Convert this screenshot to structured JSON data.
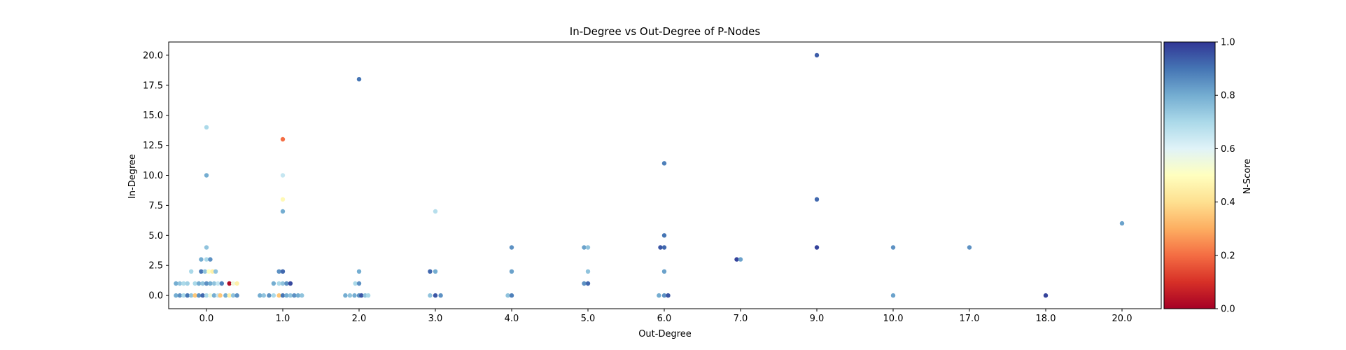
{
  "chart_data": {
    "type": "scatter",
    "title": "In-Degree vs Out-Degree of P-Nodes",
    "xlabel": "Out-Degree",
    "ylabel": "In-Degree",
    "x_categories": [
      "0.0",
      "1.0",
      "2.0",
      "3.0",
      "4.0",
      "5.0",
      "6.0",
      "7.0",
      "9.0",
      "10.0",
      "17.0",
      "18.0",
      "20.0"
    ],
    "y_ticks": [
      0.0,
      2.5,
      5.0,
      7.5,
      10.0,
      12.5,
      15.0,
      17.5,
      20.0
    ],
    "y_tick_labels": [
      "0.0",
      "2.5",
      "5.0",
      "7.5",
      "10.0",
      "12.5",
      "15.0",
      "17.5",
      "20.0"
    ],
    "ylim": [
      -1.1,
      21.1
    ],
    "grid": false,
    "colorbar": {
      "label": "N-Score",
      "range": [
        0.0,
        1.0
      ],
      "ticks": [
        "0.0",
        "0.2",
        "0.4",
        "0.6",
        "0.8",
        "1.0"
      ],
      "colormap": "RdYlBu"
    },
    "points": [
      {
        "x": "0.0",
        "offset": -0.4,
        "y": 0,
        "c": 0.8
      },
      {
        "x": "0.0",
        "offset": -0.35,
        "y": 0,
        "c": 0.85
      },
      {
        "x": "0.0",
        "offset": -0.3,
        "y": 0,
        "c": 0.7
      },
      {
        "x": "0.0",
        "offset": -0.25,
        "y": 0,
        "c": 0.9
      },
      {
        "x": "0.0",
        "offset": -0.2,
        "y": 0,
        "c": 0.75
      },
      {
        "x": "0.0",
        "offset": -0.15,
        "y": 0,
        "c": 0.35
      },
      {
        "x": "0.0",
        "offset": -0.1,
        "y": 0,
        "c": 0.85
      },
      {
        "x": "0.0",
        "offset": -0.05,
        "y": 0,
        "c": 0.92
      },
      {
        "x": "0.0",
        "offset": 0.0,
        "y": 0,
        "c": 0.7
      },
      {
        "x": "0.0",
        "offset": 0.05,
        "y": 0,
        "c": 0.55
      },
      {
        "x": "0.0",
        "offset": 0.1,
        "y": 0,
        "c": 0.8
      },
      {
        "x": "0.0",
        "offset": 0.15,
        "y": 0,
        "c": 0.65
      },
      {
        "x": "0.0",
        "offset": 0.18,
        "y": 0,
        "c": 0.35
      },
      {
        "x": "0.0",
        "offset": 0.25,
        "y": 0,
        "c": 0.8
      },
      {
        "x": "0.0",
        "offset": 0.3,
        "y": 0,
        "c": 0.45
      },
      {
        "x": "0.0",
        "offset": 0.35,
        "y": 0,
        "c": 0.75
      },
      {
        "x": "0.0",
        "offset": 0.4,
        "y": 0,
        "c": 0.85
      },
      {
        "x": "0.0",
        "offset": -0.4,
        "y": 1,
        "c": 0.8
      },
      {
        "x": "0.0",
        "offset": -0.35,
        "y": 1,
        "c": 0.75
      },
      {
        "x": "0.0",
        "offset": -0.3,
        "y": 1,
        "c": 0.7
      },
      {
        "x": "0.0",
        "offset": -0.25,
        "y": 1,
        "c": 0.72
      },
      {
        "x": "0.0",
        "offset": -0.15,
        "y": 1,
        "c": 0.7
      },
      {
        "x": "0.0",
        "offset": -0.1,
        "y": 1,
        "c": 0.8
      },
      {
        "x": "0.0",
        "offset": -0.05,
        "y": 1,
        "c": 0.75
      },
      {
        "x": "0.0",
        "offset": 0.0,
        "y": 1,
        "c": 0.85
      },
      {
        "x": "0.0",
        "offset": 0.05,
        "y": 1,
        "c": 0.8
      },
      {
        "x": "0.0",
        "offset": 0.1,
        "y": 1,
        "c": 0.75
      },
      {
        "x": "0.0",
        "offset": 0.15,
        "y": 1,
        "c": 0.65
      },
      {
        "x": "0.0",
        "offset": 0.2,
        "y": 1,
        "c": 0.88
      },
      {
        "x": "0.0",
        "offset": 0.3,
        "y": 1,
        "c": 0.02
      },
      {
        "x": "0.0",
        "offset": 0.35,
        "y": 1,
        "c": 0.55
      },
      {
        "x": "0.0",
        "offset": 0.4,
        "y": 1,
        "c": 0.45
      },
      {
        "x": "0.0",
        "offset": -0.2,
        "y": 2,
        "c": 0.7
      },
      {
        "x": "0.0",
        "offset": -0.07,
        "y": 2,
        "c": 0.9
      },
      {
        "x": "0.0",
        "offset": -0.02,
        "y": 2,
        "c": 0.75
      },
      {
        "x": "0.0",
        "offset": 0.03,
        "y": 2,
        "c": 0.5
      },
      {
        "x": "0.0",
        "offset": 0.08,
        "y": 2,
        "c": 0.45
      },
      {
        "x": "0.0",
        "offset": 0.12,
        "y": 2,
        "c": 0.75
      },
      {
        "x": "0.0",
        "offset": -0.07,
        "y": 3,
        "c": 0.8
      },
      {
        "x": "0.0",
        "offset": 0.0,
        "y": 3,
        "c": 0.7
      },
      {
        "x": "0.0",
        "offset": 0.05,
        "y": 3,
        "c": 0.85
      },
      {
        "x": "0.0",
        "offset": 0.0,
        "y": 4,
        "c": 0.75
      },
      {
        "x": "0.0",
        "offset": 0.0,
        "y": 10,
        "c": 0.8
      },
      {
        "x": "0.0",
        "offset": 0.0,
        "y": 14,
        "c": 0.7
      },
      {
        "x": "1.0",
        "offset": -0.3,
        "y": 0,
        "c": 0.8
      },
      {
        "x": "1.0",
        "offset": -0.25,
        "y": 0,
        "c": 0.75
      },
      {
        "x": "1.0",
        "offset": -0.18,
        "y": 0,
        "c": 0.85
      },
      {
        "x": "1.0",
        "offset": -0.12,
        "y": 0,
        "c": 0.7
      },
      {
        "x": "1.0",
        "offset": -0.05,
        "y": 0,
        "c": 0.35
      },
      {
        "x": "1.0",
        "offset": 0.0,
        "y": 0,
        "c": 0.9
      },
      {
        "x": "1.0",
        "offset": 0.05,
        "y": 0,
        "c": 0.8
      },
      {
        "x": "1.0",
        "offset": 0.1,
        "y": 0,
        "c": 0.75
      },
      {
        "x": "1.0",
        "offset": 0.15,
        "y": 0,
        "c": 0.85
      },
      {
        "x": "1.0",
        "offset": 0.2,
        "y": 0,
        "c": 0.8
      },
      {
        "x": "1.0",
        "offset": 0.25,
        "y": 0,
        "c": 0.75
      },
      {
        "x": "1.0",
        "offset": -0.12,
        "y": 1,
        "c": 0.8
      },
      {
        "x": "1.0",
        "offset": -0.05,
        "y": 1,
        "c": 0.7
      },
      {
        "x": "1.0",
        "offset": 0.0,
        "y": 1,
        "c": 0.75
      },
      {
        "x": "1.0",
        "offset": 0.05,
        "y": 1,
        "c": 0.85
      },
      {
        "x": "1.0",
        "offset": 0.1,
        "y": 1,
        "c": 0.97
      },
      {
        "x": "1.0",
        "offset": -0.05,
        "y": 2,
        "c": 0.85
      },
      {
        "x": "1.0",
        "offset": 0.0,
        "y": 2,
        "c": 0.92
      },
      {
        "x": "1.0",
        "offset": 0.0,
        "y": 7,
        "c": 0.8
      },
      {
        "x": "1.0",
        "offset": 0.0,
        "y": 8,
        "c": 0.48
      },
      {
        "x": "1.0",
        "offset": 0.0,
        "y": 10,
        "c": 0.65
      },
      {
        "x": "1.0",
        "offset": 0.0,
        "y": 13,
        "c": 0.2
      },
      {
        "x": "2.0",
        "offset": -0.18,
        "y": 0,
        "c": 0.8
      },
      {
        "x": "2.0",
        "offset": -0.12,
        "y": 0,
        "c": 0.75
      },
      {
        "x": "2.0",
        "offset": -0.06,
        "y": 0,
        "c": 0.8
      },
      {
        "x": "2.0",
        "offset": 0.0,
        "y": 0,
        "c": 0.85
      },
      {
        "x": "2.0",
        "offset": 0.03,
        "y": 0,
        "c": 0.95
      },
      {
        "x": "2.0",
        "offset": 0.08,
        "y": 0,
        "c": 0.75
      },
      {
        "x": "2.0",
        "offset": 0.12,
        "y": 0,
        "c": 0.7
      },
      {
        "x": "2.0",
        "offset": -0.05,
        "y": 1,
        "c": 0.7
      },
      {
        "x": "2.0",
        "offset": 0.0,
        "y": 1,
        "c": 0.85
      },
      {
        "x": "2.0",
        "offset": 0.0,
        "y": 2,
        "c": 0.8
      },
      {
        "x": "2.0",
        "offset": 0.0,
        "y": 18,
        "c": 0.9
      },
      {
        "x": "3.0",
        "offset": -0.07,
        "y": 0,
        "c": 0.75
      },
      {
        "x": "3.0",
        "offset": 0.0,
        "y": 0,
        "c": 0.95
      },
      {
        "x": "3.0",
        "offset": 0.07,
        "y": 0,
        "c": 0.85
      },
      {
        "x": "3.0",
        "offset": -0.07,
        "y": 2,
        "c": 0.92
      },
      {
        "x": "3.0",
        "offset": 0.0,
        "y": 2,
        "c": 0.8
      },
      {
        "x": "3.0",
        "offset": 0.0,
        "y": 7,
        "c": 0.68
      },
      {
        "x": "4.0",
        "offset": -0.05,
        "y": 0,
        "c": 0.75
      },
      {
        "x": "4.0",
        "offset": 0.0,
        "y": 0,
        "c": 0.88
      },
      {
        "x": "4.0",
        "offset": 0.0,
        "y": 2,
        "c": 0.82
      },
      {
        "x": "4.0",
        "offset": 0.0,
        "y": 4,
        "c": 0.85
      },
      {
        "x": "5.0",
        "offset": -0.05,
        "y": 1,
        "c": 0.85
      },
      {
        "x": "5.0",
        "offset": 0.0,
        "y": 1,
        "c": 0.92
      },
      {
        "x": "5.0",
        "offset": 0.0,
        "y": 2,
        "c": 0.75
      },
      {
        "x": "5.0",
        "offset": -0.05,
        "y": 4,
        "c": 0.82
      },
      {
        "x": "5.0",
        "offset": 0.0,
        "y": 4,
        "c": 0.75
      },
      {
        "x": "6.0",
        "offset": -0.07,
        "y": 0,
        "c": 0.8
      },
      {
        "x": "6.0",
        "offset": 0.0,
        "y": 0,
        "c": 0.85
      },
      {
        "x": "6.0",
        "offset": 0.05,
        "y": 0,
        "c": 0.95
      },
      {
        "x": "6.0",
        "offset": 0.0,
        "y": 2,
        "c": 0.82
      },
      {
        "x": "6.0",
        "offset": -0.05,
        "y": 4,
        "c": 0.95
      },
      {
        "x": "6.0",
        "offset": 0.0,
        "y": 4,
        "c": 0.92
      },
      {
        "x": "6.0",
        "offset": 0.0,
        "y": 5,
        "c": 0.9
      },
      {
        "x": "6.0",
        "offset": 0.0,
        "y": 11,
        "c": 0.88
      },
      {
        "x": "7.0",
        "offset": -0.05,
        "y": 3,
        "c": 0.98
      },
      {
        "x": "7.0",
        "offset": 0.0,
        "y": 3,
        "c": 0.82
      },
      {
        "x": "9.0",
        "offset": 0.0,
        "y": 4,
        "c": 0.98
      },
      {
        "x": "9.0",
        "offset": 0.0,
        "y": 8,
        "c": 0.92
      },
      {
        "x": "9.0",
        "offset": 0.0,
        "y": 20,
        "c": 0.94
      },
      {
        "x": "10.0",
        "offset": 0.0,
        "y": 0,
        "c": 0.82
      },
      {
        "x": "10.0",
        "offset": 0.0,
        "y": 4,
        "c": 0.85
      },
      {
        "x": "17.0",
        "offset": 0.0,
        "y": 4,
        "c": 0.85
      },
      {
        "x": "18.0",
        "offset": 0.0,
        "y": 0,
        "c": 0.98
      },
      {
        "x": "20.0",
        "offset": 0.0,
        "y": 6,
        "c": 0.82
      }
    ]
  }
}
